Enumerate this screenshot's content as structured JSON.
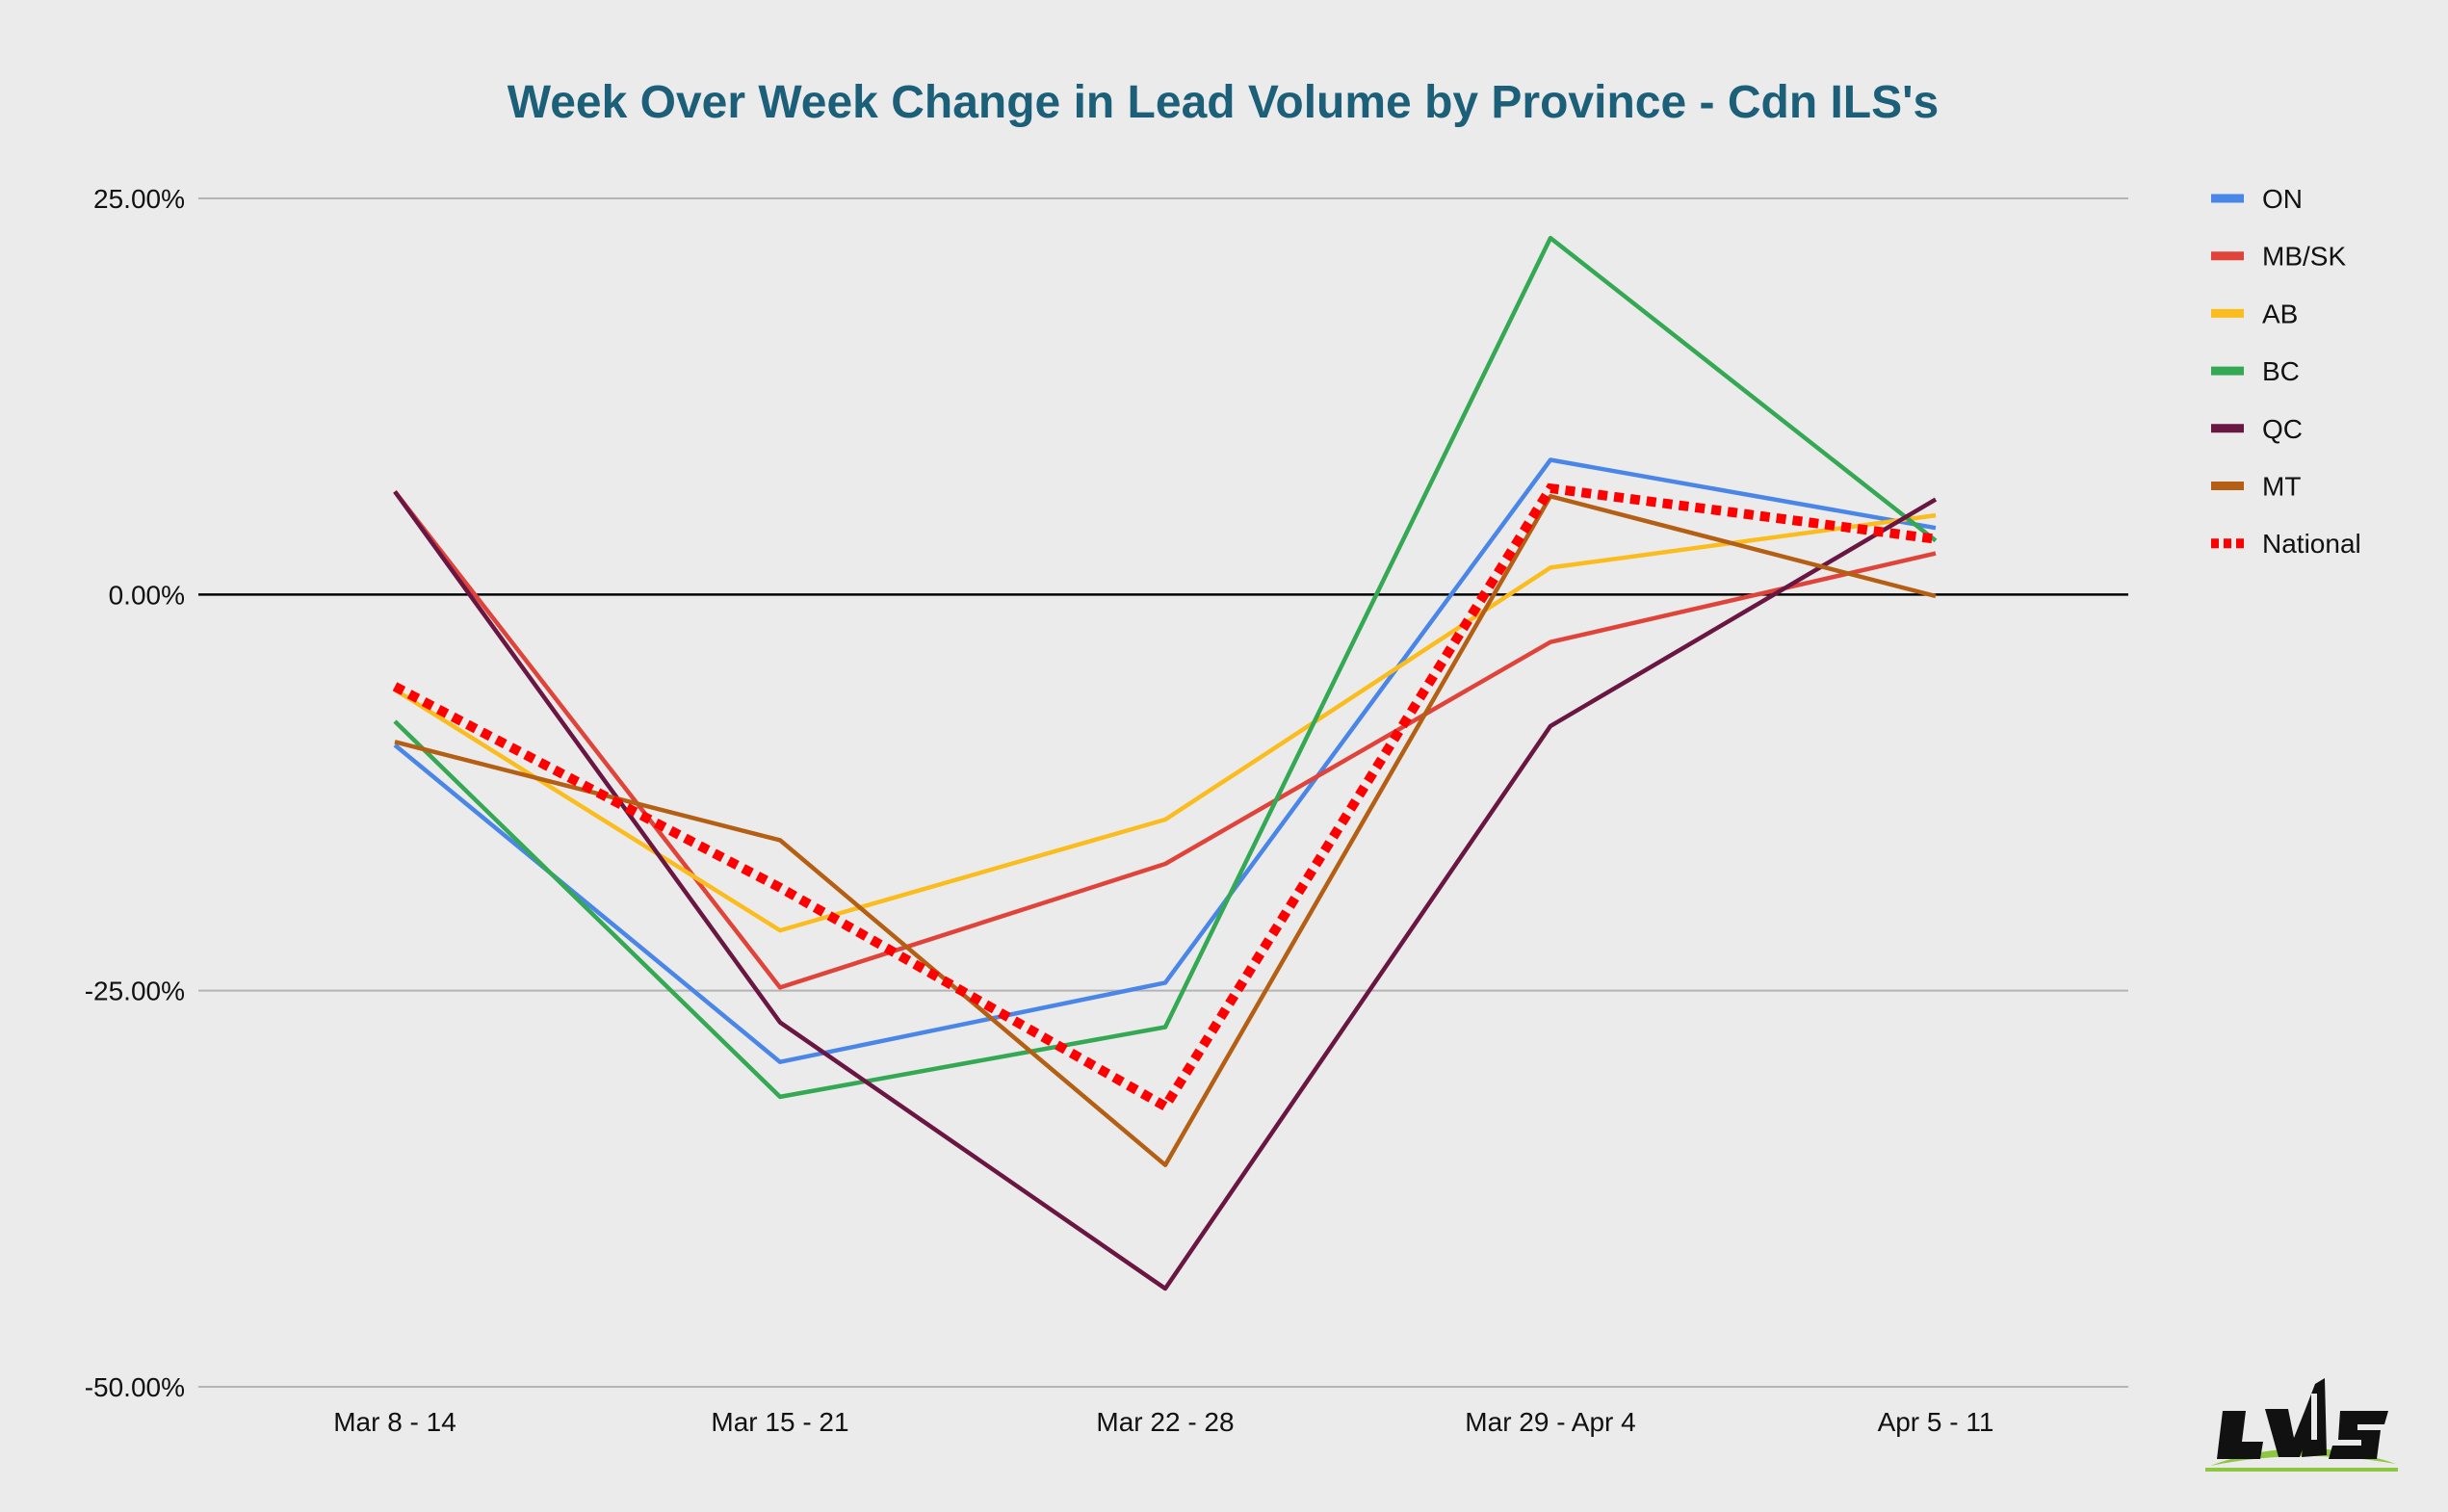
{
  "chart_data": {
    "type": "line",
    "title": "Week Over Week Change in Lead Volume by Province - Cdn ILS's",
    "xlabel": "",
    "ylabel": "",
    "categories": [
      "Mar 8 - 14",
      "Mar 15 - 21",
      "Mar 22 - 28",
      "Mar 29 - Apr 4",
      "Apr 5 - 11"
    ],
    "ylim": [
      -50,
      25
    ],
    "yticks": [
      25,
      0,
      -25,
      -50
    ],
    "ytick_labels": [
      "25.00%",
      "0.00%",
      "-25.00%",
      "-50.00%"
    ],
    "grid": true,
    "legend_position": "right",
    "series": [
      {
        "name": "ON",
        "color": "#4a86e8",
        "dashed": false,
        "values": [
          -9.5,
          -29.5,
          -24.5,
          8.5,
          4.2
        ]
      },
      {
        "name": "MB/SK",
        "color": "#e0433a",
        "dashed": false,
        "values": [
          6.5,
          -24.8,
          -17.0,
          -3.0,
          2.6
        ]
      },
      {
        "name": "AB",
        "color": "#fbbc1e",
        "dashed": false,
        "values": [
          -6.0,
          -21.2,
          -14.2,
          1.7,
          5.0
        ]
      },
      {
        "name": "BC",
        "color": "#34a853",
        "dashed": false,
        "values": [
          -8.0,
          -31.7,
          -27.3,
          22.5,
          3.4
        ]
      },
      {
        "name": "QC",
        "color": "#6a1642",
        "dashed": false,
        "values": [
          6.5,
          -27.0,
          -43.8,
          -8.3,
          6.0
        ]
      },
      {
        "name": "MT",
        "color": "#b45f13",
        "dashed": false,
        "values": [
          -9.3,
          -15.5,
          -36.0,
          6.2,
          -0.1
        ]
      },
      {
        "name": "National",
        "color": "#ff0000",
        "dashed": true,
        "values": [
          -5.8,
          -18.5,
          -32.3,
          6.7,
          3.5
        ]
      }
    ]
  },
  "logo": {
    "text": "LVS",
    "colors": [
      "#111111",
      "#8dc63f"
    ]
  }
}
